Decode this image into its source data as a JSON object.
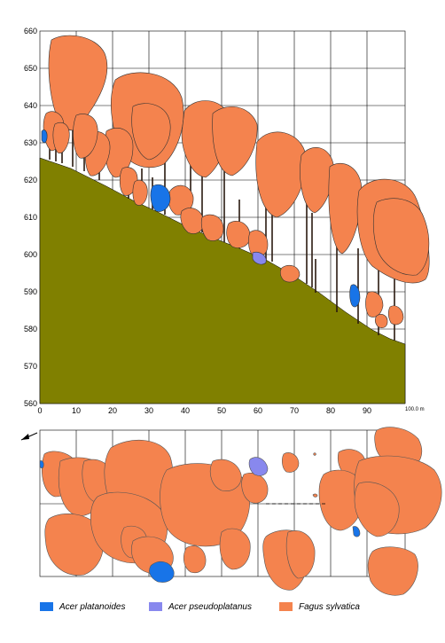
{
  "profile": {
    "y_ticks": [
      "660",
      "650",
      "640",
      "630",
      "620",
      "610",
      "600",
      "590",
      "580",
      "570",
      "560"
    ],
    "x_ticks": [
      "0",
      "10",
      "20",
      "30",
      "40",
      "50",
      "60",
      "70",
      "80",
      "90"
    ],
    "x_unit": "100.0 m",
    "colors": {
      "ground": "#808000",
      "grid": "#000000"
    }
  },
  "plan": {
    "north_arrow": "north-arrow-icon"
  },
  "legend": [
    {
      "label": "Acer platanoides",
      "color": "#1874e8"
    },
    {
      "label": "Acer pseudoplatanus",
      "color": "#8888ee"
    },
    {
      "label": "Fagus sylvatica",
      "color": "#f4834e"
    }
  ]
}
